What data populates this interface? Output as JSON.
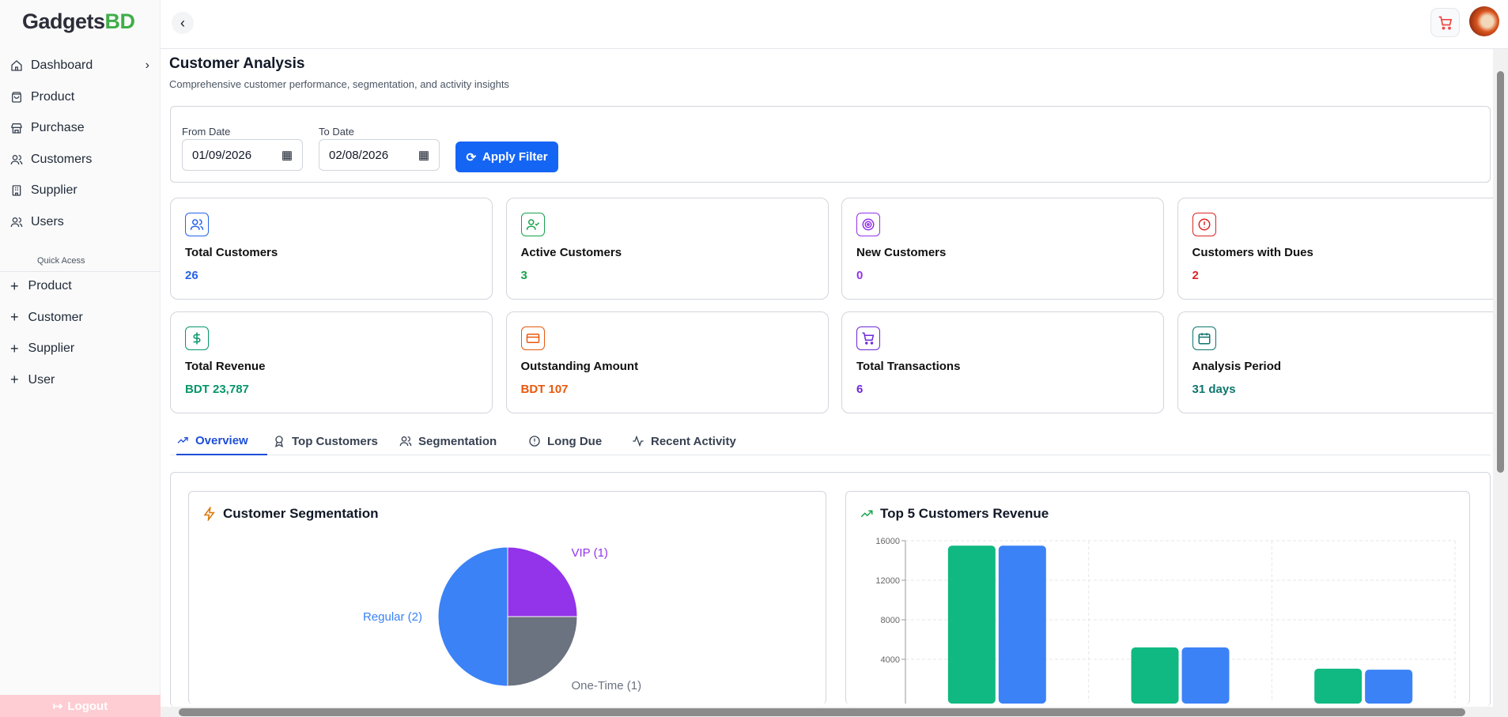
{
  "brand": {
    "name_dark": "Gadgets",
    "name_accent": "BD"
  },
  "sidebar": {
    "items": [
      {
        "label": "Dashboard",
        "icon": "home-icon"
      },
      {
        "label": "Product",
        "icon": "bag-icon"
      },
      {
        "label": "Purchase",
        "icon": "store-icon"
      },
      {
        "label": "Customers",
        "icon": "users-icon"
      },
      {
        "label": "Supplier",
        "icon": "building-icon"
      },
      {
        "label": "Users",
        "icon": "users-icon"
      }
    ],
    "quick_access_label": "Quick Acess",
    "quick_items": [
      {
        "label": "Product"
      },
      {
        "label": "Customer"
      },
      {
        "label": "Supplier"
      },
      {
        "label": "User"
      }
    ],
    "logout_label": "Logout"
  },
  "page": {
    "title": "Customer Analysis",
    "subtitle": "Comprehensive customer performance, segmentation, and activity insights"
  },
  "filter": {
    "from_label": "From Date",
    "from_value": "01/09/2026",
    "to_label": "To Date",
    "to_value": "02/08/2026",
    "apply_label": "Apply Filter"
  },
  "stats": [
    {
      "label": "Total Customers",
      "value": "26",
      "color": "#2563eb",
      "icon": "users-icon"
    },
    {
      "label": "Active Customers",
      "value": "3",
      "color": "#16a34a",
      "icon": "user-check-icon"
    },
    {
      "label": "New Customers",
      "value": "0",
      "color": "#9333ea",
      "icon": "target-icon"
    },
    {
      "label": "Customers with Dues",
      "value": "2",
      "color": "#dc2626",
      "icon": "alert-circle-icon"
    },
    {
      "label": "Total Revenue",
      "value": "BDT 23,787",
      "color": "#059669",
      "icon": "dollar-icon"
    },
    {
      "label": "Outstanding Amount",
      "value": "BDT 107",
      "color": "#ea580c",
      "icon": "credit-card-icon"
    },
    {
      "label": "Total Transactions",
      "value": "6",
      "color": "#6d28d9",
      "icon": "cart-icon"
    },
    {
      "label": "Analysis Period",
      "value": "31 days",
      "color": "#0f766e",
      "icon": "calendar-icon"
    }
  ],
  "tabs": [
    {
      "label": "Overview",
      "active": true
    },
    {
      "label": "Top Customers"
    },
    {
      "label": "Segmentation"
    },
    {
      "label": "Long Due"
    },
    {
      "label": "Recent Activity"
    }
  ],
  "chart_data": [
    {
      "type": "pie",
      "title": "Customer Segmentation",
      "slices": [
        {
          "label": "VIP (1)",
          "value": 1,
          "color": "#9333ea"
        },
        {
          "label": "One-Time (1)",
          "value": 1,
          "color": "#6b7280"
        },
        {
          "label": "Regular (2)",
          "value": 2,
          "color": "#3b82f6"
        }
      ]
    },
    {
      "type": "bar",
      "title": "Top 5 Customers Revenue",
      "ylim": [
        0,
        16000
      ],
      "yticks": [
        "16000",
        "12000",
        "8000",
        "4000"
      ],
      "grid": true,
      "series": [
        {
          "values": [
            15500,
            5200,
            3050
          ],
          "color": "#10b981"
        },
        {
          "values": [
            15500,
            5200,
            2950
          ],
          "color": "#3b82f6"
        }
      ]
    }
  ]
}
